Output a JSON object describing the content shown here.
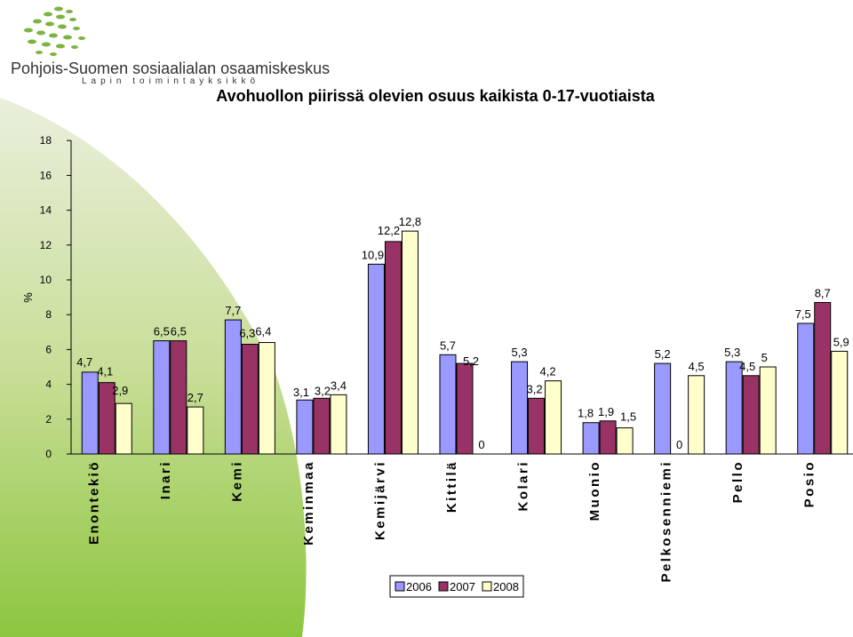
{
  "header": {
    "org_name": "Pohjois-Suomen sosiaalialan osaamiskeskus",
    "org_unit": "Lapin toimintayksikkö"
  },
  "colors": {
    "s2006": "#9999ff",
    "s2007": "#993366",
    "s2008": "#ffffcc",
    "accent_green": "#8cc63f"
  },
  "chart_data": {
    "type": "bar",
    "title": "Avohuollon piirissä olevien osuus kaikista 0-17-vuotiaista",
    "ylabel": "%",
    "xlabel": "",
    "ylim": [
      0,
      18
    ],
    "yticks": [
      0,
      2,
      4,
      6,
      8,
      10,
      12,
      14,
      16,
      18
    ],
    "grid": false,
    "legend_position": "bottom",
    "categories": [
      "Enontekiö",
      "Inari",
      "Kemi",
      "Keminmaa",
      "Kemijärvi",
      "Kittilä",
      "Kolari",
      "Muonio",
      "Pelkosenniemi",
      "Pello",
      "Posio"
    ],
    "series": [
      {
        "name": "2006",
        "values": [
          4.7,
          6.5,
          7.7,
          3.1,
          10.9,
          5.7,
          5.3,
          1.8,
          5.2,
          5.3,
          7.5
        ],
        "labels": [
          "4,7",
          "6,5",
          "7,7",
          "3,1",
          "10,9",
          "5,7",
          "5,3",
          "1,8",
          "5,2",
          "5,3",
          "7,5"
        ]
      },
      {
        "name": "2007",
        "values": [
          4.1,
          6.5,
          6.3,
          3.2,
          12.2,
          5.2,
          3.2,
          1.9,
          0,
          4.5,
          8.7
        ],
        "labels": [
          "4,1",
          "6,5",
          "6,3",
          "3,2",
          "12,2",
          "5,2",
          "3,2",
          "1,9",
          "0",
          "4,5",
          "8,7"
        ]
      },
      {
        "name": "2008",
        "values": [
          2.9,
          2.7,
          6.4,
          3.4,
          12.8,
          0,
          4.2,
          1.5,
          4.5,
          5,
          5.9
        ],
        "labels": [
          "2,9",
          "2,7",
          "6,4",
          "3,4",
          "12,8",
          "0",
          "4,2",
          "1,5",
          "4,5",
          "5",
          "5,9"
        ]
      }
    ]
  }
}
